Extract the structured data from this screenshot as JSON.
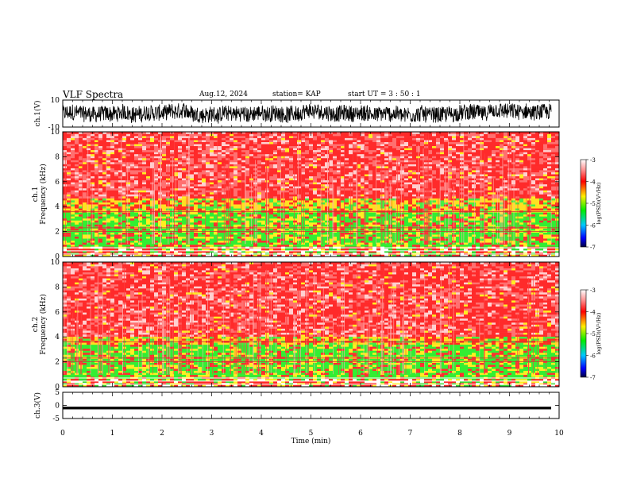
{
  "header": {
    "title": "VLF Spectra",
    "date": "Aug.12, 2024",
    "station": "station= KAP",
    "start_ut": "start  UT  =   3  : 50 : 1"
  },
  "colors": {
    "background_red": "#ff1e1e",
    "band_green": "#33ee33",
    "band_yellow": "#ffee22",
    "white_line": "#ffffff"
  },
  "chart_data": [
    {
      "type": "line",
      "panel": "ch1-waveform",
      "ylabel": "ch.1(V)",
      "ylim": [
        -10,
        10
      ],
      "yticks": [
        "10",
        "-10"
      ],
      "description_of_series": "noisy signal fluctuating roughly between -7 and +7 V"
    },
    {
      "type": "heatmap",
      "panel": "ch1-spectrogram",
      "ylabel_line1": "ch.1",
      "ylabel_line2": "Frequency (kHz)",
      "ylim": [
        0,
        10
      ],
      "yticks": [
        "0",
        "2",
        "4",
        "6",
        "8",
        "10"
      ],
      "xlim": [
        0,
        10
      ],
      "bands_khz": [
        {
          "from": 0.0,
          "to": 0.8,
          "level": "mixed"
        },
        {
          "from": 0.8,
          "to": 3.6,
          "level": "green"
        },
        {
          "from": 3.6,
          "to": 4.6,
          "level": "yellow"
        },
        {
          "from": 4.6,
          "to": 10.0,
          "level": "red"
        }
      ],
      "colorbar": {
        "label": "log(PSD)(V²/Hz)",
        "ticks": [
          "-3",
          "-4",
          "-5",
          "-6",
          "-7"
        ],
        "range": [
          -7,
          -3
        ]
      }
    },
    {
      "type": "heatmap",
      "panel": "ch2-spectrogram",
      "ylabel_line1": "ch.2",
      "ylabel_line2": "Frequency (kHz)",
      "ylim": [
        0,
        10
      ],
      "yticks": [
        "0",
        "2",
        "4",
        "6",
        "8",
        "10"
      ],
      "xlim": [
        0,
        10
      ],
      "bands_khz": [
        {
          "from": 0.0,
          "to": 0.6,
          "level": "mixed"
        },
        {
          "from": 0.6,
          "to": 3.4,
          "level": "green"
        },
        {
          "from": 3.4,
          "to": 4.0,
          "level": "yellow"
        },
        {
          "from": 4.0,
          "to": 10.0,
          "level": "red"
        }
      ],
      "colorbar": {
        "label": "log(PSD)(V²/Hz)",
        "ticks": [
          "-3",
          "-4",
          "-5",
          "-6",
          "-7"
        ],
        "range": [
          -7,
          -3
        ]
      }
    },
    {
      "type": "line",
      "panel": "ch3-waveform",
      "ylabel": "ch.3(V)",
      "ylim": [
        -5,
        5
      ],
      "yticks": [
        "5",
        "0",
        "-5"
      ],
      "series_band": [
        -1.5,
        -0.5
      ]
    }
  ],
  "xaxis": {
    "label": "Time (min)",
    "xlim": [
      0,
      10
    ],
    "ticks": [
      "0",
      "1",
      "2",
      "3",
      "4",
      "5",
      "6",
      "7",
      "8",
      "9",
      "10"
    ]
  }
}
